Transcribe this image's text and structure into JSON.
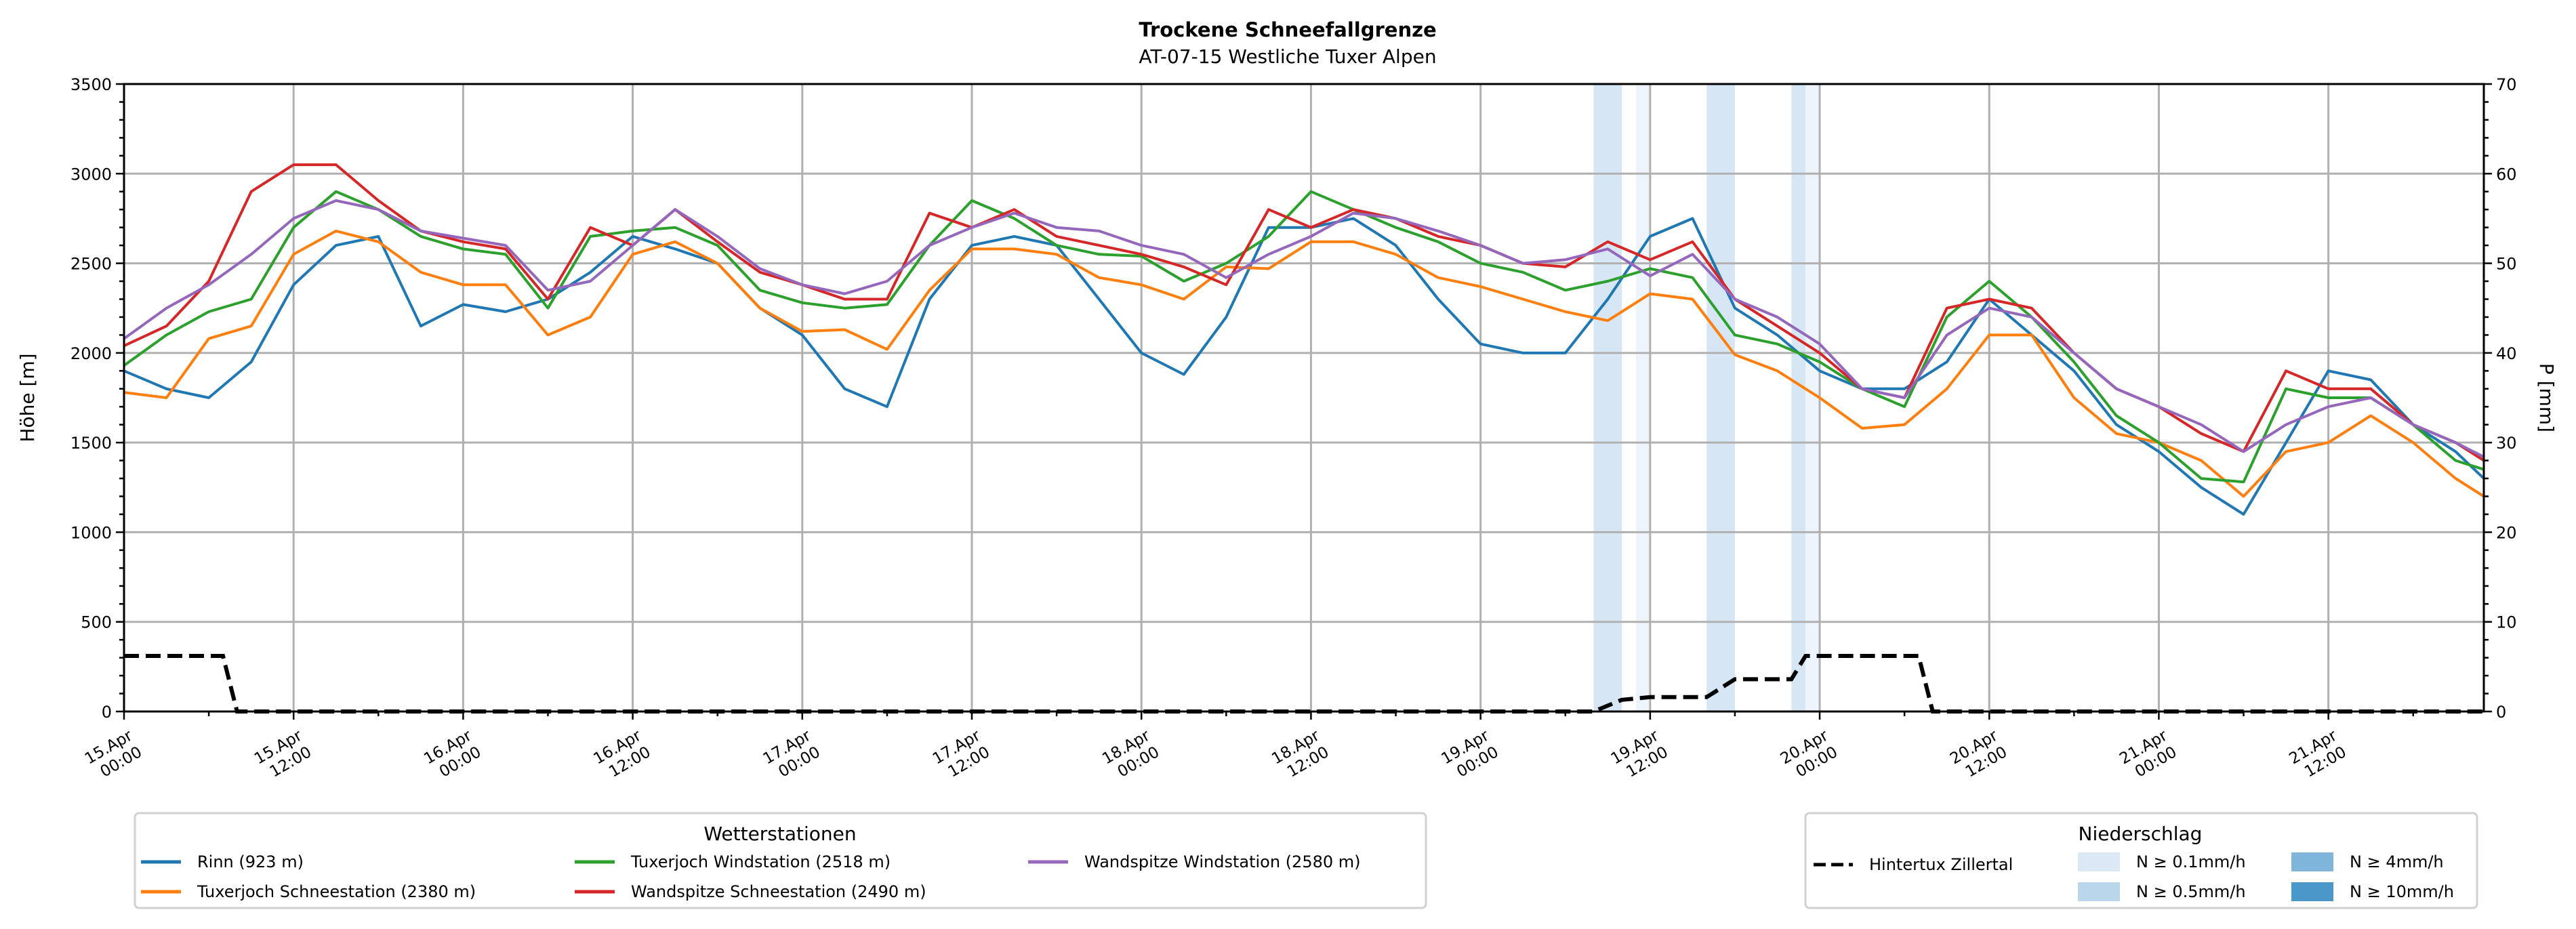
{
  "chart_data": {
    "type": "line",
    "title": "Trockene Schneefallgrenze",
    "subtitle": "AT-07-15 Westliche Tuxer Alpen",
    "ylabel": "Höhe [m]",
    "ylabel_right": "P [mm]",
    "ylim": [
      0,
      3500
    ],
    "ylim_right": [
      0,
      70
    ],
    "x_unit": "hours since 15.Apr 00:00",
    "xlim": [
      0,
      167
    ],
    "grid": true,
    "yticks": [
      0,
      500,
      1000,
      1500,
      2000,
      2500,
      3000,
      3500
    ],
    "yticks_right": [
      0,
      10,
      20,
      30,
      40,
      50,
      60,
      70
    ],
    "xticks": [
      {
        "h": 0,
        "date": "15.Apr",
        "time": "00:00"
      },
      {
        "h": 12,
        "date": "15.Apr",
        "time": "12:00"
      },
      {
        "h": 24,
        "date": "16.Apr",
        "time": "00:00"
      },
      {
        "h": 36,
        "date": "16.Apr",
        "time": "12:00"
      },
      {
        "h": 48,
        "date": "17.Apr",
        "time": "00:00"
      },
      {
        "h": 60,
        "date": "17.Apr",
        "time": "12:00"
      },
      {
        "h": 72,
        "date": "18.Apr",
        "time": "00:00"
      },
      {
        "h": 84,
        "date": "18.Apr",
        "time": "12:00"
      },
      {
        "h": 96,
        "date": "19.Apr",
        "time": "00:00"
      },
      {
        "h": 108,
        "date": "19.Apr",
        "time": "12:00"
      },
      {
        "h": 120,
        "date": "20.Apr",
        "time": "00:00"
      },
      {
        "h": 132,
        "date": "20.Apr",
        "time": "12:00"
      },
      {
        "h": 144,
        "date": "21.Apr",
        "time": "00:00"
      },
      {
        "h": 156,
        "date": "21.Apr",
        "time": "12:00"
      }
    ],
    "x": [
      0,
      3,
      6,
      9,
      12,
      15,
      18,
      21,
      24,
      27,
      30,
      33,
      36,
      39,
      42,
      45,
      48,
      51,
      54,
      57,
      60,
      63,
      66,
      69,
      72,
      75,
      78,
      81,
      84,
      87,
      90,
      93,
      96,
      99,
      102,
      105,
      108,
      111,
      114,
      117,
      120,
      123,
      126,
      129,
      132,
      135,
      138,
      141,
      144,
      147,
      150,
      153,
      156,
      159,
      162,
      165,
      167
    ],
    "series": [
      {
        "name": "Rinn (923 m)",
        "color": "#1f77b4",
        "values": [
          1900,
          1800,
          1750,
          1950,
          2380,
          2600,
          2650,
          2150,
          2270,
          2230,
          2300,
          2450,
          2650,
          2580,
          2500,
          2250,
          2100,
          1800,
          1700,
          2300,
          2600,
          2650,
          2600,
          2300,
          2000,
          1880,
          2200,
          2700,
          2700,
          2750,
          2600,
          2300,
          2050,
          2000,
          2000,
          2300,
          2650,
          2750,
          2250,
          2100,
          1900,
          1800,
          1800,
          1950,
          2300,
          2100,
          1900,
          1600,
          1450,
          1250,
          1100,
          1500,
          1900,
          1850,
          1600,
          1450,
          1300
        ]
      },
      {
        "name": "Tuxerjoch Schneestation (2380 m)",
        "color": "#ff7f0e",
        "values": [
          1780,
          1750,
          2080,
          2150,
          2550,
          2680,
          2620,
          2450,
          2380,
          2380,
          2100,
          2200,
          2550,
          2620,
          2500,
          2250,
          2120,
          2130,
          2020,
          2350,
          2580,
          2580,
          2550,
          2420,
          2380,
          2300,
          2480,
          2470,
          2620,
          2620,
          2550,
          2420,
          2370,
          2300,
          2230,
          2180,
          2330,
          2300,
          1990,
          1900,
          1750,
          1580,
          1600,
          1800,
          2100,
          2100,
          1750,
          1550,
          1500,
          1400,
          1200,
          1450,
          1500,
          1650,
          1500,
          1300,
          1200
        ]
      },
      {
        "name": "Tuxerjoch Windstation (2518 m)",
        "color": "#2ca02c",
        "values": [
          1930,
          2100,
          2230,
          2300,
          2700,
          2900,
          2800,
          2650,
          2580,
          2550,
          2250,
          2650,
          2680,
          2700,
          2600,
          2350,
          2280,
          2250,
          2270,
          2600,
          2850,
          2750,
          2600,
          2550,
          2540,
          2400,
          2500,
          2650,
          2900,
          2800,
          2700,
          2620,
          2500,
          2450,
          2350,
          2400,
          2470,
          2420,
          2100,
          2050,
          1950,
          1800,
          1700,
          2200,
          2400,
          2200,
          1950,
          1650,
          1500,
          1300,
          1280,
          1800,
          1750,
          1750,
          1600,
          1400,
          1350
        ]
      },
      {
        "name": "Wandspitze Schneestation (2490 m)",
        "color": "#d62728",
        "values": [
          2040,
          2150,
          2400,
          2900,
          3050,
          3050,
          2850,
          2680,
          2620,
          2580,
          2300,
          2700,
          2600,
          2800,
          2620,
          2450,
          2380,
          2300,
          2300,
          2780,
          2700,
          2800,
          2650,
          2600,
          2550,
          2480,
          2380,
          2800,
          2700,
          2800,
          2750,
          2650,
          2600,
          2500,
          2480,
          2620,
          2520,
          2620,
          2300,
          2150,
          2000,
          1800,
          1750,
          2250,
          2300,
          2250,
          2000,
          1800,
          1700,
          1550,
          1450,
          1900,
          1800,
          1800,
          1600,
          1500,
          1400
        ]
      },
      {
        "name": "Wandspitze Windstation (2580 m)",
        "color": "#9467bd",
        "values": [
          2080,
          2250,
          2380,
          2550,
          2750,
          2850,
          2800,
          2680,
          2640,
          2600,
          2350,
          2400,
          2600,
          2800,
          2650,
          2470,
          2380,
          2330,
          2400,
          2600,
          2700,
          2780,
          2700,
          2680,
          2600,
          2550,
          2420,
          2550,
          2650,
          2780,
          2750,
          2680,
          2600,
          2500,
          2520,
          2580,
          2430,
          2550,
          2300,
          2200,
          2050,
          1800,
          1750,
          2100,
          2250,
          2200,
          2000,
          1800,
          1700,
          1600,
          1450,
          1600,
          1700,
          1750,
          1600,
          1500,
          1420
        ]
      }
    ],
    "precip_series": {
      "name": "Hintertux Zillertal",
      "color": "#000000",
      "axis": "right",
      "points": [
        [
          0,
          6.2
        ],
        [
          7,
          6.2
        ],
        [
          8,
          0
        ],
        [
          104,
          0
        ],
        [
          106,
          1.3
        ],
        [
          108,
          1.6
        ],
        [
          112,
          1.6
        ],
        [
          114,
          3.6
        ],
        [
          118,
          3.6
        ],
        [
          119,
          6.2
        ],
        [
          127,
          6.2
        ],
        [
          128,
          0
        ],
        [
          167,
          0
        ]
      ]
    },
    "precip_bands": [
      {
        "start": 104,
        "end": 106,
        "class": "N ≥ 0.5mm/h"
      },
      {
        "start": 107,
        "end": 108,
        "class": "N ≥ 0.1mm/h"
      },
      {
        "start": 112,
        "end": 114,
        "class": "N ≥ 0.5mm/h"
      },
      {
        "start": 118,
        "end": 119,
        "class": "N ≥ 0.5mm/h"
      },
      {
        "start": 119,
        "end": 120,
        "class": "N ≥ 0.1mm/h"
      }
    ],
    "precip_classes": [
      {
        "label": "N ≥ 0.1mm/h",
        "color": "#dbe9f6"
      },
      {
        "label": "N ≥ 0.5mm/h",
        "color": "#bad6eb"
      },
      {
        "label": "N ≥ 4mm/h",
        "color": "#7fb5da"
      },
      {
        "label": "N ≥ 10mm/h",
        "color": "#4a98c9"
      }
    ],
    "legend_stations_title": "Wetterstationen",
    "legend_precip_title": "Niederschlag",
    "legend_placement": "below"
  }
}
